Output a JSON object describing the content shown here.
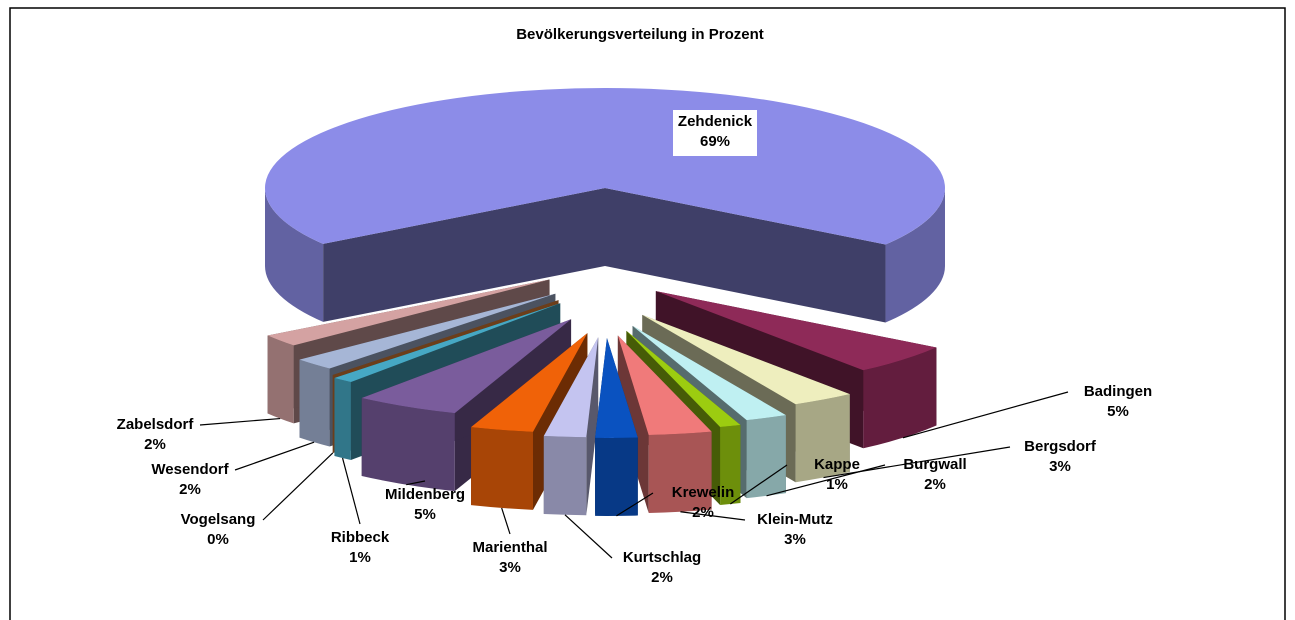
{
  "chart_data": {
    "type": "pie3d",
    "title": "Bevölkerungsverteilung in Prozent",
    "categories": [
      "Zehdenick",
      "Badingen",
      "Bergsdorf",
      "Burgwall",
      "Kappe",
      "Klein-Mutz",
      "Krewelin",
      "Kurtschlag",
      "Marienthal",
      "Mildenberg",
      "Ribbeck",
      "Vogelsang",
      "Wesendorf",
      "Zabelsdorf"
    ],
    "values": [
      69,
      5,
      3,
      2,
      1,
      3,
      2,
      2,
      3,
      5,
      1,
      0,
      2,
      2
    ],
    "value_labels": [
      "69%",
      "5%",
      "3%",
      "2%",
      "1%",
      "3%",
      "2%",
      "2%",
      "3%",
      "5%",
      "1%",
      "0%",
      "2%",
      "2%"
    ],
    "colors": [
      "#8c8ce8",
      "#8e2a58",
      "#eeeebe",
      "#bff0f2",
      "#9ccc10",
      "#f07a7a",
      "#0a52c0",
      "#c4c4f0",
      "#f06208",
      "#7a5c9c",
      "#46a8c4",
      "#f08a3a",
      "#a6b6d6",
      "#d4a2a2"
    ]
  }
}
